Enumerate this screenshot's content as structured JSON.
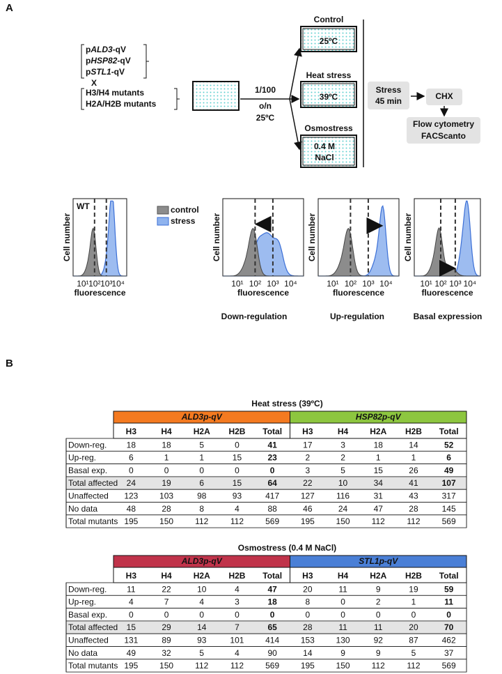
{
  "panel_a": {
    "label": "A",
    "strains": [
      {
        "prefix": "p",
        "gene": "ALD3",
        "suffix": "-qV"
      },
      {
        "prefix": "p",
        "gene": "HSP82",
        "suffix": "-qV"
      },
      {
        "prefix": "p",
        "gene": "STL1",
        "suffix": "-qV"
      }
    ],
    "cross": "X",
    "mutants": [
      "H3/H4 mutants",
      "H2A/H2B mutants"
    ],
    "dilution": [
      "1/100",
      "o/n",
      "25ºC"
    ],
    "conditions": [
      {
        "label": "Control",
        "lines": [
          "25ºC"
        ]
      },
      {
        "label": "Heat stress",
        "lines": [
          "39ºC"
        ]
      },
      {
        "label": "Osmostress",
        "lines": [
          "0.4 M",
          "NaCl"
        ]
      }
    ],
    "steps": [
      [
        "Stress",
        "45 min"
      ],
      [
        "CHX"
      ],
      [
        "Flow cytometry",
        "FACScanto"
      ]
    ],
    "histograms": {
      "y_label": "Cell number",
      "x_label": "fluorescence",
      "ticks": [
        "10¹",
        "10²",
        "10³",
        "10⁴"
      ],
      "legend": [
        "control",
        "stress"
      ],
      "wt_label": "WT",
      "captions": [
        "Down-regulation",
        "Up-regulation",
        "Basal expression"
      ]
    }
  },
  "panel_b": {
    "label": "B",
    "tables": [
      {
        "title": "Heat stress (39ºC)",
        "groups": [
          {
            "label": "ALD3p-qV",
            "color": "#f47a20"
          },
          {
            "label": "HSP82p-qV",
            "color": "#8dc63f"
          }
        ],
        "columns": [
          "H3",
          "H4",
          "H2A",
          "H2B",
          "Total",
          "H3",
          "H4",
          "H2A",
          "H2B",
          "Total"
        ],
        "rows": [
          {
            "label": "Down-reg.",
            "values": [
              18,
              18,
              5,
              0,
              41,
              17,
              3,
              18,
              14,
              52
            ]
          },
          {
            "label": "Up-reg.",
            "values": [
              6,
              1,
              1,
              15,
              23,
              2,
              2,
              1,
              1,
              6
            ]
          },
          {
            "label": "Basal exp.",
            "values": [
              0,
              0,
              0,
              0,
              0,
              3,
              5,
              15,
              26,
              49
            ]
          },
          {
            "label": "Total affected",
            "values": [
              24,
              19,
              6,
              15,
              64,
              22,
              10,
              34,
              41,
              107
            ]
          },
          {
            "label": "Unaffected",
            "values": [
              123,
              103,
              98,
              93,
              417,
              127,
              116,
              31,
              43,
              317
            ]
          },
          {
            "label": "No data",
            "values": [
              48,
              28,
              8,
              4,
              88,
              46,
              24,
              47,
              28,
              145
            ]
          },
          {
            "label": "Total mutants",
            "values": [
              195,
              150,
              112,
              112,
              569,
              195,
              150,
              112,
              112,
              569
            ]
          }
        ]
      },
      {
        "title": "Osmostress (0.4 M NaCl)",
        "groups": [
          {
            "label": "ALD3p-qV",
            "color": "#c0334a"
          },
          {
            "label": "STL1p-qV",
            "color": "#4a7fd6"
          }
        ],
        "columns": [
          "H3",
          "H4",
          "H2A",
          "H2B",
          "Total",
          "H3",
          "H4",
          "H2A",
          "H2B",
          "Total"
        ],
        "rows": [
          {
            "label": "Down-reg.",
            "values": [
              11,
              22,
              10,
              4,
              47,
              20,
              11,
              9,
              19,
              59
            ]
          },
          {
            "label": "Up-reg.",
            "values": [
              4,
              7,
              4,
              3,
              18,
              8,
              0,
              2,
              1,
              11
            ]
          },
          {
            "label": "Basal exp.",
            "values": [
              0,
              0,
              0,
              0,
              0,
              0,
              0,
              0,
              0,
              0
            ]
          },
          {
            "label": "Total affected",
            "values": [
              15,
              29,
              14,
              7,
              65,
              28,
              11,
              11,
              20,
              70
            ]
          },
          {
            "label": "Unaffected",
            "values": [
              131,
              89,
              93,
              101,
              414,
              153,
              130,
              92,
              87,
              462
            ]
          },
          {
            "label": "No data",
            "values": [
              49,
              32,
              5,
              4,
              90,
              14,
              9,
              9,
              5,
              37
            ]
          },
          {
            "label": "Total mutants",
            "values": [
              195,
              150,
              112,
              112,
              569,
              195,
              150,
              112,
              112,
              569
            ]
          }
        ]
      }
    ]
  }
}
